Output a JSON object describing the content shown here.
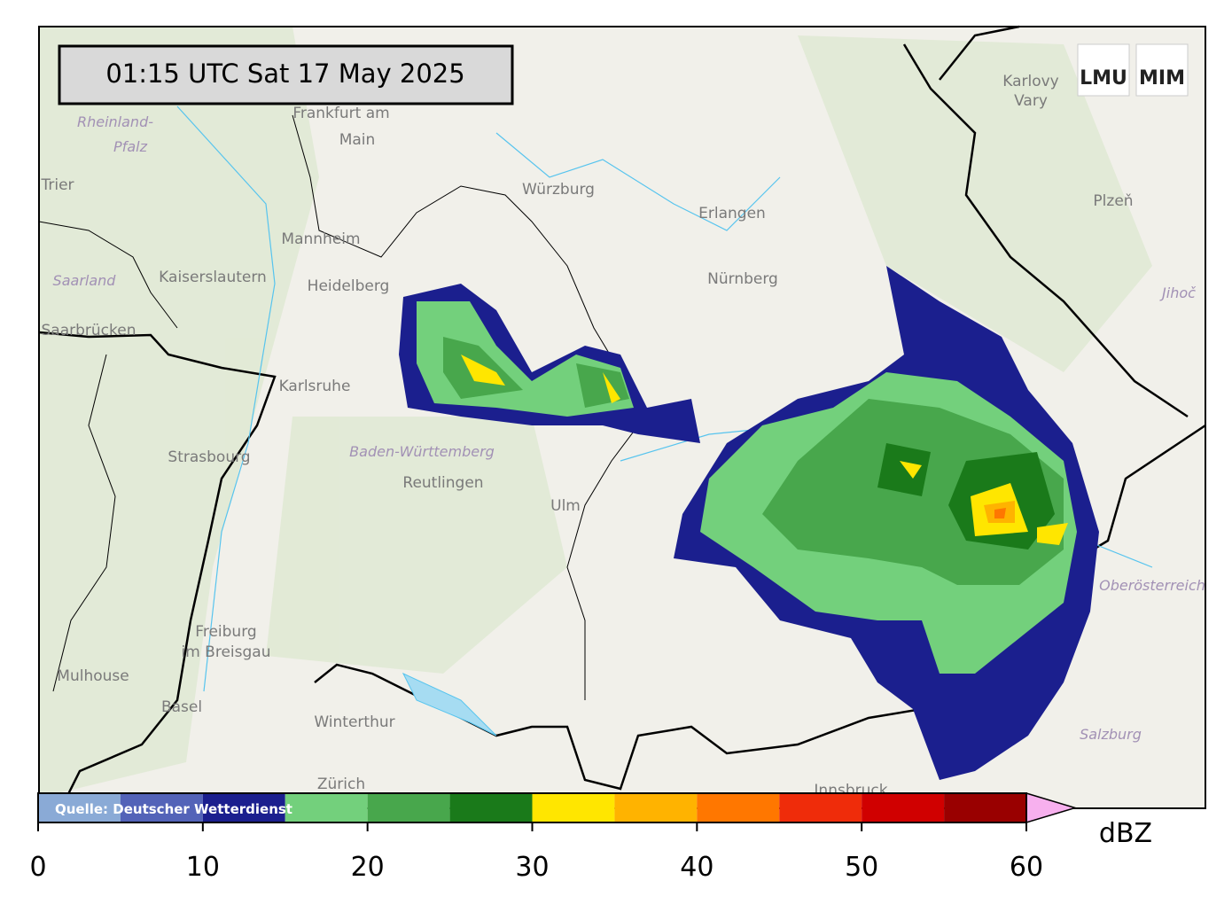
{
  "timestamp": "01:15 UTC  Sat 17 May 2025",
  "logo": {
    "left": "LMU",
    "right": "MIM"
  },
  "source": "Quelle: Deutscher Wetterdienst",
  "places": [
    "Frankfurt am",
    "Main",
    "Rheinland-",
    "Pfalz",
    "Trier",
    "Mannheim",
    "Heidelberg",
    "Kaiserslautern",
    "Saarland",
    "Saarbrücken",
    "Karlsruhe",
    "Strasbourg",
    "Baden-Württemberg",
    "Reutlingen",
    "Ulm",
    "Freiburg",
    "im Breisgau",
    "Mulhouse",
    "Basel",
    "Winterthur",
    "Zürich",
    "Würzburg",
    "Erlangen",
    "Nürnberg",
    "Karlovy",
    "Vary",
    "Plzeň",
    "Jihoč",
    "Oberösterreich",
    "Salzburg",
    "Innsbruck"
  ],
  "colorbar": {
    "bins": [
      0,
      5,
      10,
      15,
      20,
      25,
      30,
      35,
      40,
      45,
      50,
      55,
      60
    ],
    "colors": [
      "#8aaad6",
      "#5363b8",
      "#1b1f8e",
      "#73d07c",
      "#48a74c",
      "#1a7a1a",
      "#ffe600",
      "#ffb300",
      "#ff7700",
      "#ef2c0a",
      "#d00000",
      "#990000"
    ],
    "over_color": "#f7b0ee",
    "ticks": [
      0,
      10,
      20,
      30,
      40,
      50,
      60
    ],
    "unit": "dBZ"
  }
}
